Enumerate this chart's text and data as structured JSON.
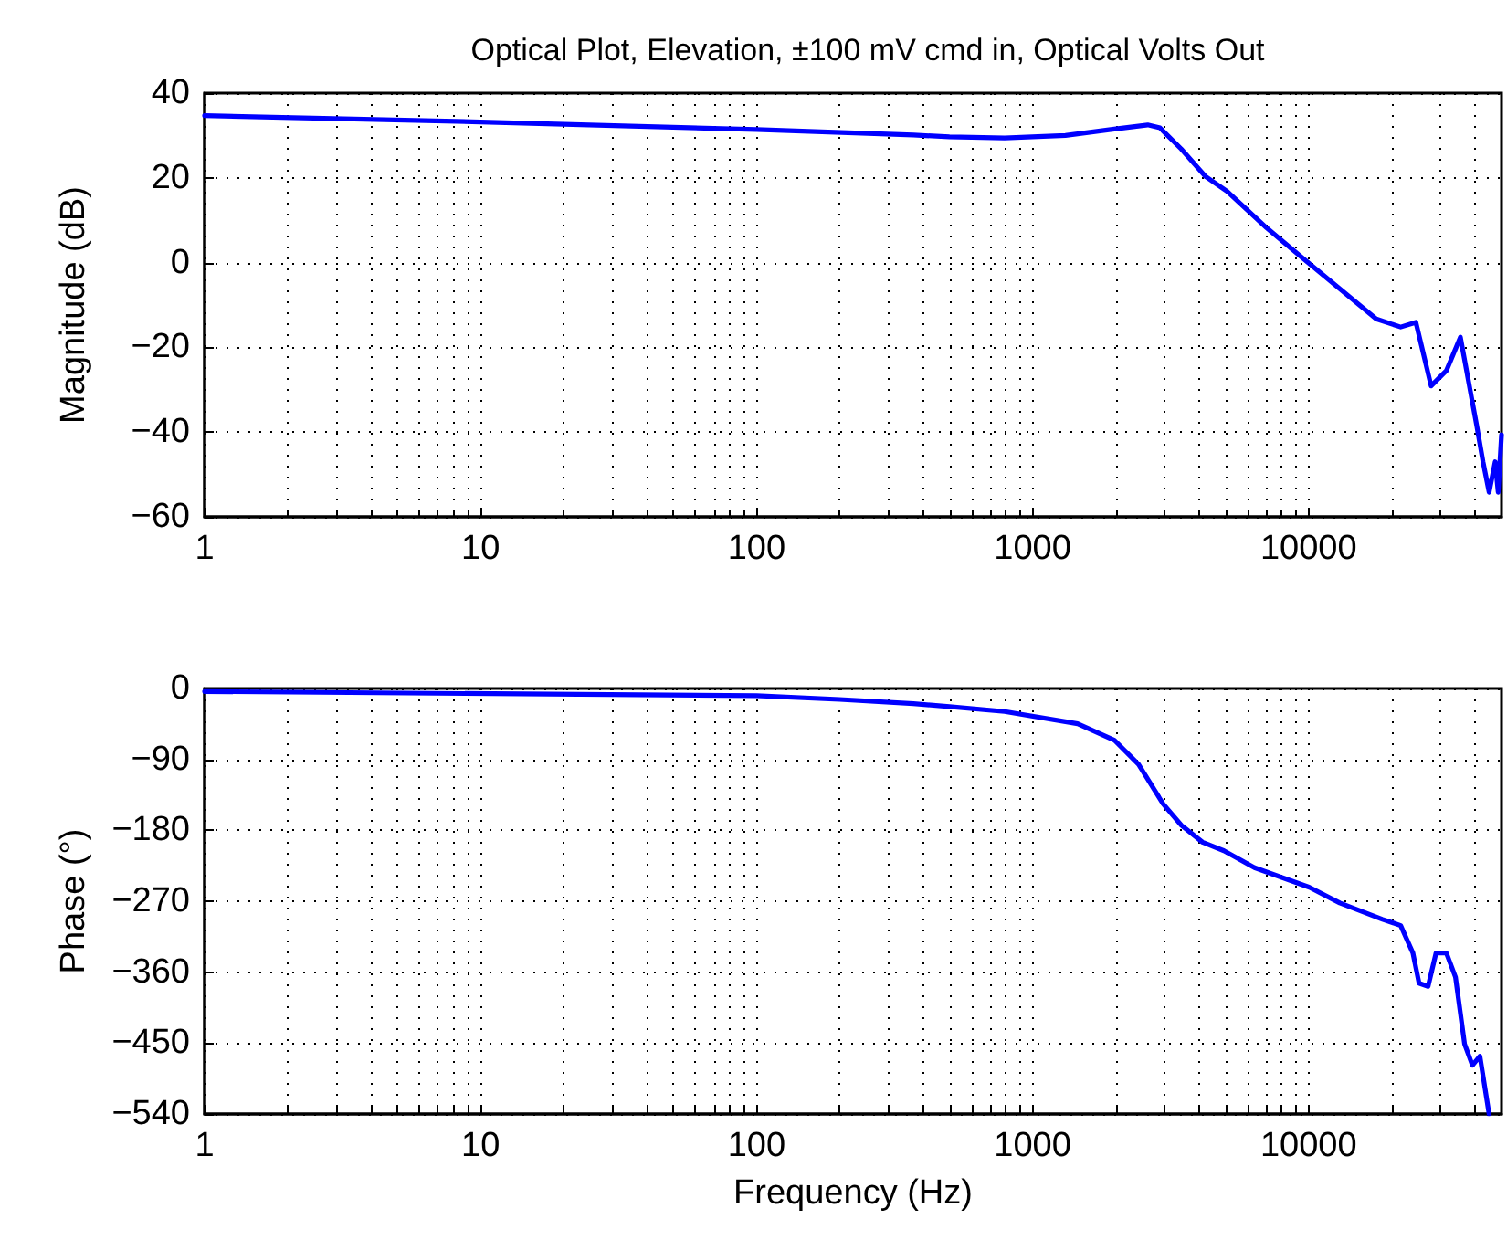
{
  "chart_data": [
    {
      "type": "line",
      "title": "Optical Plot, Elevation, ±100 mV cmd in, Optical Volts Out",
      "ylabel": "Magnitude (dB)",
      "log": "x",
      "grid": true,
      "marker": "none",
      "line_style": "solid",
      "xlim": [
        1,
        50000
      ],
      "xticks": [
        1,
        10,
        100,
        1000,
        10000
      ],
      "ylim": [
        -60,
        40
      ],
      "yticks": [
        {
          "value": -60,
          "label": "−60"
        },
        {
          "value": -40,
          "label": "−40"
        },
        {
          "value": -20,
          "label": "−20"
        },
        0,
        20,
        40
      ],
      "series": [
        {
          "color": "#0000ff",
          "x": [
            1,
            10,
            100,
            370,
            500,
            792,
            1315,
            1977,
            2612,
            2895,
            3458,
            4237,
            5070,
            7048,
            9550,
            12970,
            17580,
            21560,
            24480,
            27790,
            31560,
            35480,
            40640,
            42850,
            45080,
            47420,
            48630,
            50000
          ],
          "values": [
            34.7,
            33.2,
            31.4,
            30.1,
            29.7,
            29.4,
            30.0,
            31.5,
            32.5,
            31.8,
            26.8,
            20.3,
            16.8,
            8.2,
            1.0,
            -6.2,
            -13.3,
            -15.2,
            -14.1,
            -29.1,
            -25.5,
            -17.6,
            -38.4,
            -47.0,
            -54.2,
            -47.0,
            -54.2,
            -40.6
          ]
        }
      ]
    },
    {
      "type": "line",
      "xlabel": "Frequency (Hz)",
      "ylabel": "Phase (°)",
      "log": "x",
      "grid": true,
      "marker": "none",
      "line_style": "solid",
      "xlim": [
        1,
        50000
      ],
      "xticks": [
        1,
        10,
        100,
        1000,
        10000
      ],
      "ylim": [
        -540,
        0
      ],
      "yticks": [
        {
          "value": -540,
          "label": "−540"
        },
        {
          "value": -450,
          "label": "−450"
        },
        {
          "value": -360,
          "label": "−360"
        },
        {
          "value": -270,
          "label": "−270"
        },
        {
          "value": -180,
          "label": "−180"
        },
        {
          "value": -90,
          "label": "−90"
        },
        0
      ],
      "series": [
        {
          "color": "#0000ff",
          "x": [
            1,
            100,
            200,
            370,
            500,
            792,
            1456,
            1977,
            2421,
            2971,
            3458,
            4130,
            4937,
            6368,
            10070,
            12970,
            18530,
            21560,
            23870,
            25130,
            27100,
            28950,
            31560,
            34060,
            36740,
            39230,
            41750,
            45080
          ],
          "values": [
            -3.8,
            -9.2,
            -13.9,
            -19.2,
            -23,
            -29.3,
            -44.7,
            -65.5,
            -96.4,
            -146.5,
            -173.6,
            -195.1,
            -206,
            -227.5,
            -252.3,
            -272.2,
            -293,
            -300.9,
            -335.6,
            -374,
            -378,
            -335.6,
            -335.6,
            -366.4,
            -451.3,
            -478.2,
            -466.6,
            -540
          ]
        }
      ]
    }
  ]
}
